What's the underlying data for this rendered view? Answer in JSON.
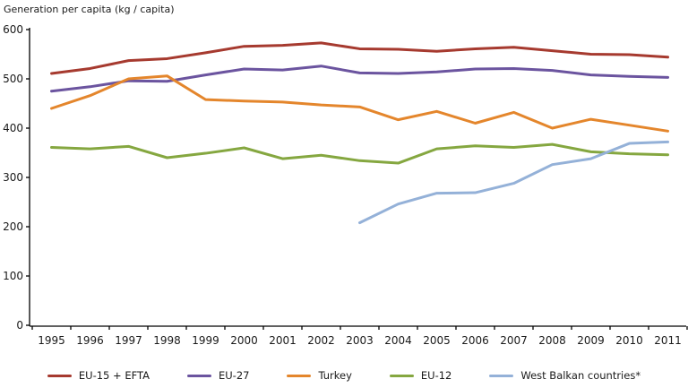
{
  "chart_data": {
    "type": "line",
    "title": "Generation per capita (kg / capita)",
    "x": [
      1995,
      1996,
      1997,
      1998,
      1999,
      2000,
      2001,
      2002,
      2003,
      2004,
      2005,
      2006,
      2007,
      2008,
      2009,
      2010,
      2011
    ],
    "ylim": [
      0,
      600
    ],
    "ytick_step": 100,
    "grid": false,
    "legend_position": "bottom",
    "axis_color": "#000000",
    "text_color": "#1a1a1a",
    "series": [
      {
        "name": "EU-15 + EFTA",
        "slug": "eu-15-efta",
        "color": "#a63a2f",
        "values": [
          511,
          521,
          537,
          541,
          553,
          566,
          568,
          573,
          561,
          560,
          556,
          561,
          564,
          557,
          550,
          549,
          544
        ]
      },
      {
        "name": "EU-27",
        "slug": "eu-27",
        "color": "#6b549f",
        "values": [
          475,
          484,
          496,
          495,
          508,
          520,
          518,
          526,
          512,
          511,
          514,
          520,
          521,
          517,
          508,
          505,
          503
        ]
      },
      {
        "name": "Turkey",
        "slug": "turkey",
        "color": "#e4862c",
        "values": [
          440,
          466,
          500,
          506,
          458,
          455,
          453,
          447,
          443,
          417,
          434,
          410,
          432,
          400,
          418,
          406,
          394
        ]
      },
      {
        "name": "EU-12",
        "slug": "eu-12",
        "color": "#85a740",
        "values": [
          361,
          358,
          363,
          340,
          349,
          360,
          338,
          345,
          334,
          329,
          358,
          364,
          361,
          367,
          352,
          348,
          346
        ]
      },
      {
        "name": "West Balkan countries*",
        "slug": "west-balkan-countries",
        "color": "#94b1d8",
        "values": [
          null,
          null,
          null,
          null,
          null,
          null,
          null,
          null,
          208,
          246,
          268,
          269,
          288,
          326,
          338,
          369,
          372
        ]
      }
    ]
  }
}
